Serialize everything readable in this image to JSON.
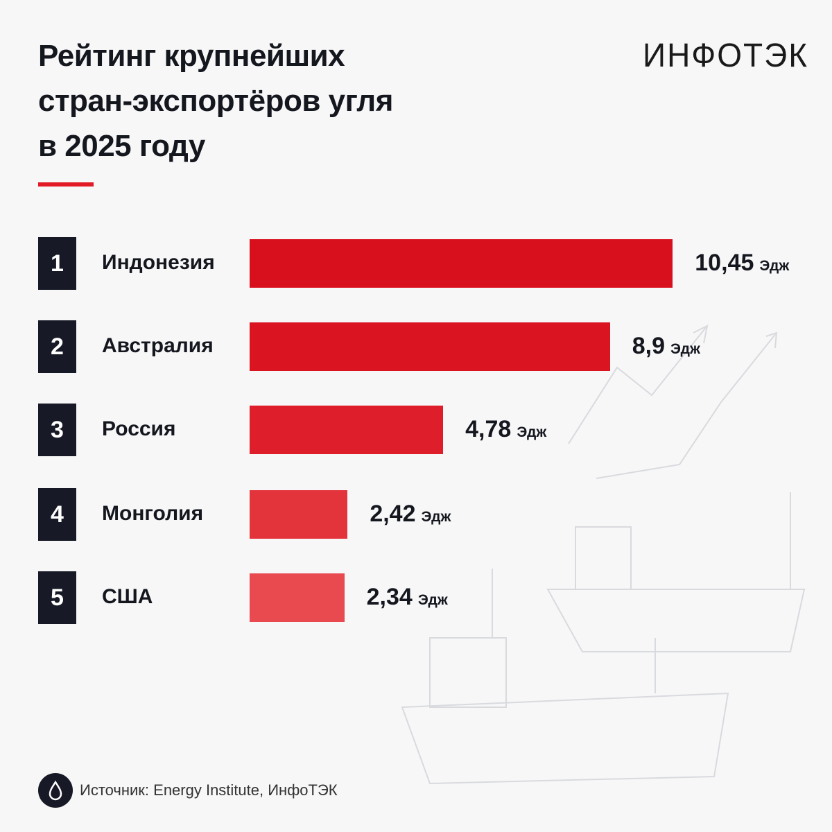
{
  "logo": "ИНФОТЭК",
  "chart_data": {
    "type": "bar",
    "orientation": "horizontal",
    "title": [
      "Рейтинг крупнейших",
      "стран-экспортёров угля",
      "в 2025 году"
    ],
    "ranks": [
      1,
      2,
      3,
      4,
      5
    ],
    "categories": [
      "Индонезия",
      "Австралия",
      "Россия",
      "Монголия",
      "США"
    ],
    "values": [
      10.45,
      8.9,
      4.78,
      2.42,
      2.34
    ],
    "value_labels": [
      "10,45",
      "8,9",
      "4,78",
      "2,42",
      "2,34"
    ],
    "unit": "Эдж",
    "colors": [
      "#d8101e",
      "#da1421",
      "#de1e2a",
      "#e3343c",
      "#e84a50"
    ]
  },
  "source": "Источник: Energy Institute, ИнфоТЭК"
}
